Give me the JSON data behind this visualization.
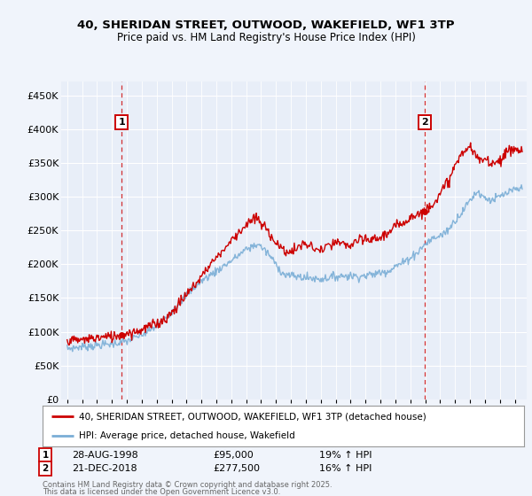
{
  "title_line1": "40, SHERIDAN STREET, OUTWOOD, WAKEFIELD, WF1 3TP",
  "title_line2": "Price paid vs. HM Land Registry's House Price Index (HPI)",
  "background_color": "#f0f4fb",
  "plot_bg_color": "#e8eef8",
  "grid_color": "#ffffff",
  "red_line_color": "#cc0000",
  "blue_line_color": "#7aaed6",
  "marker1_year": 1998.65,
  "marker1_value": 95000,
  "marker2_year": 2018.97,
  "marker2_value": 277500,
  "marker1_date": "28-AUG-1998",
  "marker1_price": "£95,000",
  "marker1_hpi": "19% ↑ HPI",
  "marker2_date": "21-DEC-2018",
  "marker2_price": "£277,500",
  "marker2_hpi": "16% ↑ HPI",
  "legend_label1": "40, SHERIDAN STREET, OUTWOOD, WAKEFIELD, WF1 3TP (detached house)",
  "legend_label2": "HPI: Average price, detached house, Wakefield",
  "footer_line1": "Contains HM Land Registry data © Crown copyright and database right 2025.",
  "footer_line2": "This data is licensed under the Open Government Licence v3.0.",
  "ytick_labels": [
    "£0",
    "£50K",
    "£100K",
    "£150K",
    "£200K",
    "£250K",
    "£300K",
    "£350K",
    "£400K",
    "£450K"
  ],
  "ytick_values": [
    0,
    50000,
    100000,
    150000,
    200000,
    250000,
    300000,
    350000,
    400000,
    450000
  ],
  "ymax": 470000,
  "xmin": 1994.6,
  "xmax": 2025.8
}
